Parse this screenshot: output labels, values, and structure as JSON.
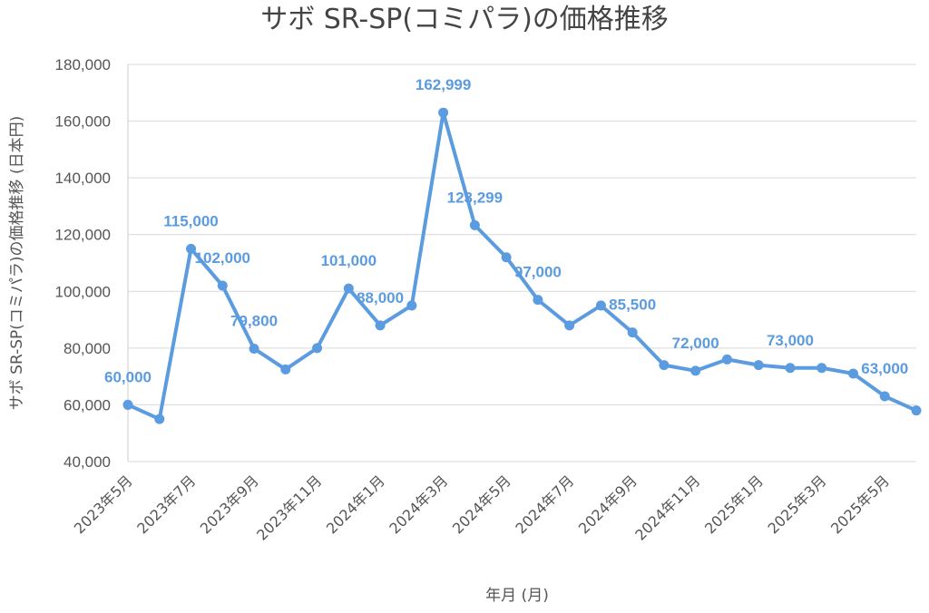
{
  "chart_data": {
    "type": "line",
    "title": "サボ SR-SP(コミパラ)の価格推移",
    "xlabel": "年月 (月)",
    "ylabel": "サボ SR-SP(コミパラ)の価格推移 (日本円)",
    "ylim": [
      40000,
      180000
    ],
    "yticks": [
      "40,000",
      "60,000",
      "80,000",
      "100,000",
      "120,000",
      "140,000",
      "160,000",
      "180,000"
    ],
    "x": [
      "2023年5月",
      "2023年6月",
      "2023年7月",
      "2023年8月",
      "2023年9月",
      "2023年10月",
      "2023年11月",
      "2023年12月",
      "2024年1月",
      "2024年2月",
      "2024年3月",
      "2024年4月",
      "2024年5月",
      "2024年6月",
      "2024年7月",
      "2024年8月",
      "2024年9月",
      "2024年10月",
      "2024年11月",
      "2024年12月",
      "2025年1月",
      "2025年2月",
      "2025年3月",
      "2025年4月",
      "2025年5月",
      "2025年6月"
    ],
    "xtick_labels": [
      "2023年5月",
      "2023年7月",
      "2023年9月",
      "2023年11月",
      "2024年1月",
      "2024年3月",
      "2024年5月",
      "2024年7月",
      "2024年9月",
      "2024年11月",
      "2025年1月",
      "2025年3月",
      "2025年5月"
    ],
    "grid": true,
    "legend": "none",
    "series": [
      {
        "color": "#5b9bdf",
        "values": [
          60000,
          55000,
          115000,
          102000,
          79800,
          72500,
          80000,
          101000,
          88000,
          95000,
          162999,
          123299,
          112000,
          97000,
          88000,
          95000,
          85500,
          74000,
          72000,
          76000,
          74000,
          73000,
          73000,
          71000,
          63000,
          58000
        ]
      }
    ],
    "data_labels": [
      {
        "index": 0,
        "text": "60,000"
      },
      {
        "index": 2,
        "text": "115,000"
      },
      {
        "index": 3,
        "text": "102,000"
      },
      {
        "index": 4,
        "text": "79,800"
      },
      {
        "index": 7,
        "text": "101,000"
      },
      {
        "index": 8,
        "text": "88,000"
      },
      {
        "index": 10,
        "text": "162,999"
      },
      {
        "index": 11,
        "text": "123,299"
      },
      {
        "index": 13,
        "text": "97,000"
      },
      {
        "index": 16,
        "text": "85,500"
      },
      {
        "index": 18,
        "text": "72,000"
      },
      {
        "index": 21,
        "text": "73,000"
      },
      {
        "index": 24,
        "text": "63,000"
      }
    ]
  }
}
